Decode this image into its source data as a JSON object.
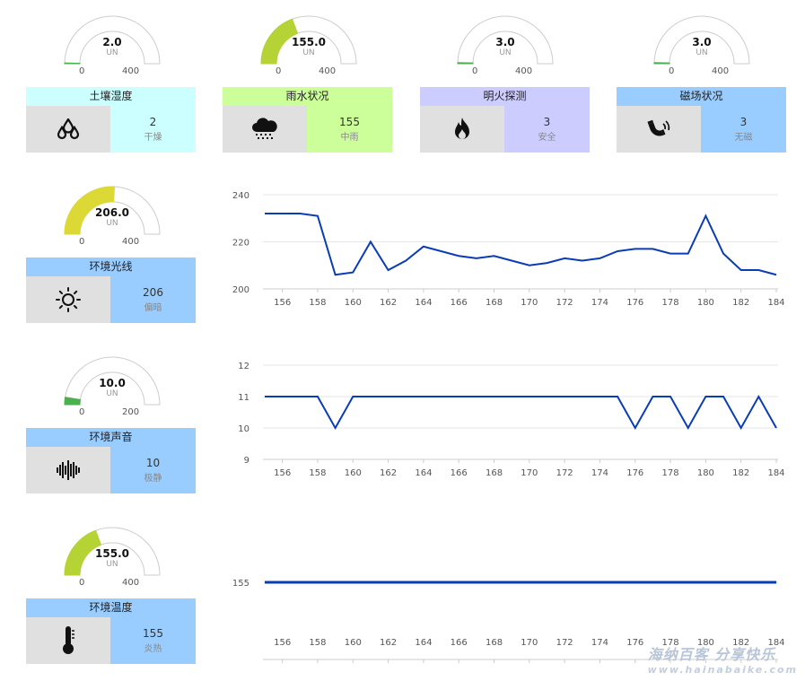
{
  "sensors": [
    {
      "id": "soil",
      "title": "土壤湿度",
      "value": "2",
      "status": "干燥",
      "gauge_value": "2.0",
      "gauge_min": "0",
      "gauge_max": "400",
      "unit": "UN",
      "fraction": 0.005,
      "fill_color": "#4caf50",
      "title_bg": "#ccffff",
      "value_bg": "#ccffff",
      "icon": "water-drops-icon"
    },
    {
      "id": "rain",
      "title": "雨水状况",
      "value": "155",
      "status": "中雨",
      "gauge_value": "155.0",
      "gauge_min": "0",
      "gauge_max": "400",
      "unit": "UN",
      "fraction": 0.3875,
      "fill_color": "#b5d334",
      "title_bg": "#ccff99",
      "value_bg": "#ccff99",
      "icon": "rain-cloud-icon"
    },
    {
      "id": "fire",
      "title": "明火探测",
      "value": "3",
      "status": "安全",
      "gauge_value": "3.0",
      "gauge_min": "0",
      "gauge_max": "400",
      "unit": "UN",
      "fraction": 0.0075,
      "fill_color": "#4caf50",
      "title_bg": "#ccccff",
      "value_bg": "#ccccff",
      "icon": "flame-icon"
    },
    {
      "id": "magnet",
      "title": "磁场状况",
      "value": "3",
      "status": "无磁",
      "gauge_value": "3.0",
      "gauge_min": "0",
      "gauge_max": "400",
      "unit": "UN",
      "fraction": 0.0075,
      "fill_color": "#4caf50",
      "title_bg": "#99ccff",
      "value_bg": "#99ccff",
      "icon": "magnet-icon"
    },
    {
      "id": "light",
      "title": "环境光线",
      "value": "206",
      "status": "偏暗",
      "gauge_value": "206.0",
      "gauge_min": "0",
      "gauge_max": "400",
      "unit": "UN",
      "fraction": 0.515,
      "fill_color": "#dcd936",
      "title_bg": "#99ccff",
      "value_bg": "#99ccff",
      "icon": "sun-icon"
    },
    {
      "id": "sound",
      "title": "环境声音",
      "value": "10",
      "status": "极静",
      "gauge_value": "10.0",
      "gauge_min": "0",
      "gauge_max": "200",
      "unit": "UN",
      "fraction": 0.05,
      "fill_color": "#4caf50",
      "title_bg": "#99ccff",
      "value_bg": "#99ccff",
      "icon": "sound-wave-icon"
    },
    {
      "id": "temp",
      "title": "环境温度",
      "value": "155",
      "status": "炎热",
      "gauge_value": "155.0",
      "gauge_min": "0",
      "gauge_max": "400",
      "unit": "UN",
      "fraction": 0.3875,
      "fill_color": "#b5d334",
      "title_bg": "#99ccff",
      "value_bg": "#99ccff",
      "icon": "thermometer-icon"
    }
  ],
  "chart_data": [
    {
      "type": "line",
      "x": [
        155,
        156,
        157,
        158,
        159,
        160,
        161,
        162,
        163,
        164,
        165,
        166,
        167,
        168,
        169,
        170,
        171,
        172,
        173,
        174,
        175,
        176,
        177,
        178,
        179,
        180,
        181,
        182,
        183,
        184
      ],
      "series": [
        {
          "values": [
            232,
            232,
            232,
            231,
            206,
            207,
            220,
            208,
            212,
            218,
            216,
            214,
            213,
            214,
            212,
            210,
            211,
            213,
            212,
            213,
            216,
            217,
            217,
            215,
            215,
            231,
            215,
            208,
            208,
            206
          ]
        }
      ],
      "xticks": [
        156,
        158,
        160,
        162,
        164,
        166,
        168,
        170,
        172,
        174,
        176,
        178,
        180,
        182,
        184
      ],
      "yticks": [
        200,
        220,
        240
      ],
      "ylim": [
        200,
        240
      ],
      "color": "#0a3cb4"
    },
    {
      "type": "line",
      "x": [
        155,
        156,
        157,
        158,
        159,
        160,
        161,
        162,
        163,
        164,
        165,
        166,
        167,
        168,
        169,
        170,
        171,
        172,
        173,
        174,
        175,
        176,
        177,
        178,
        179,
        180,
        181,
        182,
        183,
        184
      ],
      "series": [
        {
          "values": [
            11,
            11,
            11,
            11,
            10,
            11,
            11,
            11,
            11,
            11,
            11,
            11,
            11,
            11,
            11,
            11,
            11,
            11,
            11,
            11,
            11,
            10,
            11,
            11,
            10,
            11,
            11,
            10,
            11,
            10
          ]
        }
      ],
      "xticks": [
        156,
        158,
        160,
        162,
        164,
        166,
        168,
        170,
        172,
        174,
        176,
        178,
        180,
        182,
        184
      ],
      "yticks": [
        9,
        10,
        11,
        12
      ],
      "ylim": [
        9,
        12
      ],
      "color": "#0a3cb4"
    },
    {
      "type": "line",
      "x": [
        155,
        156,
        157,
        158,
        159,
        160,
        161,
        162,
        163,
        164,
        165,
        166,
        167,
        168,
        169,
        170,
        171,
        172,
        173,
        174,
        175,
        176,
        177,
        178,
        179,
        180,
        181,
        182,
        183,
        184
      ],
      "series": [
        {
          "values": [
            155,
            155,
            155,
            155,
            155,
            155,
            155,
            155,
            155,
            155,
            155,
            155,
            155,
            155,
            155,
            155,
            155,
            155,
            155,
            155,
            155,
            155,
            155,
            155,
            155,
            155,
            155,
            155,
            155,
            155
          ]
        }
      ],
      "xticks": [
        156,
        158,
        160,
        162,
        164,
        166,
        168,
        170,
        172,
        174,
        176,
        178,
        180,
        182,
        184
      ],
      "yticks": [
        155
      ],
      "color": "#0a3cb4"
    }
  ],
  "watermark": {
    "line1": "海纳百客 分享快乐",
    "line2": "www.hainabaike.com"
  }
}
